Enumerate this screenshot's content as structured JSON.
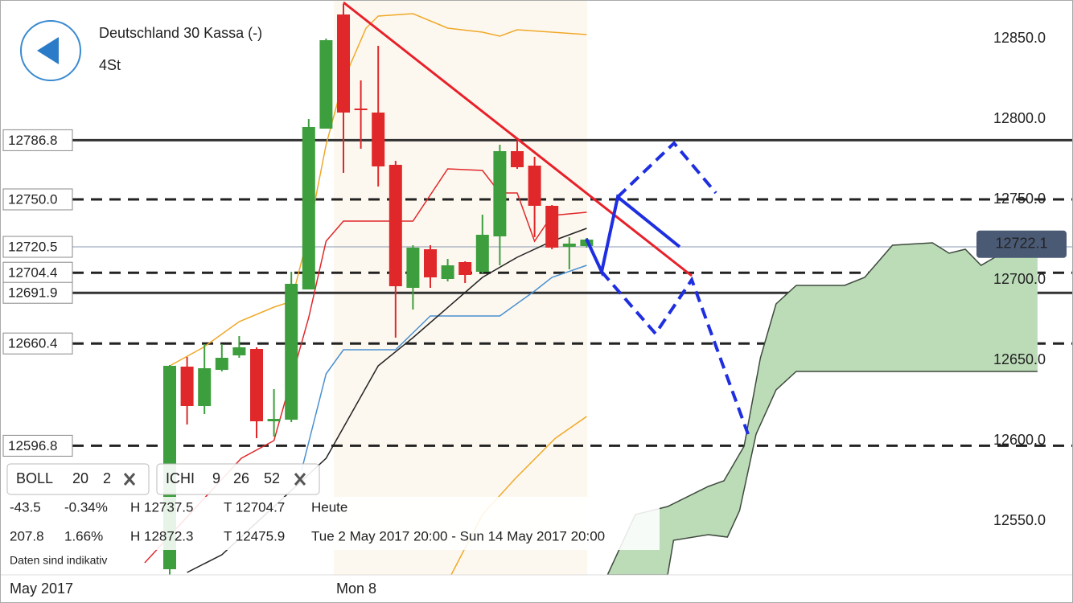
{
  "header": {
    "title": "Deutschland 30 Kassa (-)",
    "timeframe": "4St"
  },
  "chart_data": {
    "type": "candlestick",
    "categories": [
      null,
      null,
      null,
      null,
      null,
      null,
      null,
      null,
      null,
      null,
      "Mon 8",
      null,
      null,
      null,
      null,
      null,
      null,
      null,
      null,
      null,
      null,
      null,
      null,
      null,
      null
    ],
    "period_label": "May 2017",
    "open": [
      12520,
      12646,
      12621.5,
      12644,
      12653,
      12657,
      12612,
      12613,
      12694,
      12794,
      12865,
      12806.5,
      12804,
      12771.5,
      12695,
      12719,
      12700.5,
      12711,
      12705,
      12727,
      12780,
      12771,
      12746,
      12720.5,
      12721
    ],
    "high": [
      12647,
      12652,
      12660,
      12660,
      12665,
      12658,
      12632,
      12705,
      12800,
      12850,
      12871.5,
      12824,
      12845.5,
      12774,
      12721.5,
      12721.5,
      12713,
      12711.5,
      12740.5,
      12784,
      12786.5,
      12776.5,
      12746.5,
      12726.5,
      12726
    ],
    "low": [
      12500,
      12610,
      12616.5,
      12643,
      12651.5,
      12601.5,
      12602.5,
      12611.5,
      12694,
      12794,
      12766.5,
      12781.5,
      12758,
      12664,
      12681.5,
      12695,
      12699,
      12698,
      12704,
      12709,
      12769,
      12726.5,
      12719,
      12706.5,
      12720
    ],
    "close": [
      12646.5,
      12621.5,
      12645,
      12651.5,
      12658,
      12612,
      12613.5,
      12697.5,
      12795,
      12849,
      12804,
      12805.5,
      12770.5,
      12696,
      12720,
      12701.5,
      12709,
      12703,
      12728,
      12780,
      12770,
      12746,
      12720,
      12722.5,
      12725
    ],
    "up_color": "#3d9e3d",
    "down_color": "#e0282a",
    "ylim": [
      12516.5,
      12874
    ],
    "yticks": [
      {
        "value": 12550,
        "label": "12550.0"
      },
      {
        "value": 12600,
        "label": "12600.0"
      },
      {
        "value": 12650,
        "label": "12650.0"
      },
      {
        "value": 12700,
        "label": "12700.0"
      },
      {
        "value": 12750,
        "label": "12750.0"
      },
      {
        "value": 12800,
        "label": "12800.0"
      },
      {
        "value": 12850,
        "label": "12850.0"
      }
    ],
    "overlays": [
      {
        "color": "#f0a828",
        "x": [
          0,
          1.94,
          4,
          6,
          7,
          8,
          9,
          10,
          11.3,
          12,
          14,
          16,
          18,
          19,
          20,
          24
        ],
        "values": [
          12646.5,
          12658,
          12674,
          12683,
          12686.5,
          12729,
          12784,
          12824,
          12856.5,
          12864,
          12865.5,
          12856.5,
          12854,
          12851.5,
          12855.5,
          12852.5
        ]
      },
      {
        "color": "#f0a828",
        "x": [
          16.2,
          18,
          19.9,
          22.2,
          24
        ],
        "values": [
          12516.5,
          12554,
          12576.5,
          12601.5,
          12615
        ]
      },
      {
        "color": "#e0282a",
        "x": [
          -1.44,
          4.12,
          6,
          8,
          9,
          10,
          14,
          16,
          18,
          19,
          20,
          21,
          22,
          24
        ],
        "values": [
          12524,
          12589,
          12600,
          12676.5,
          12724,
          12736.5,
          12736.5,
          12769,
          12768,
          12754,
          12754,
          12724,
          12740,
          12742
        ]
      },
      {
        "color": "#4a90d0",
        "x": [
          7.59,
          9,
          10,
          13,
          15,
          19,
          21,
          22,
          24
        ],
        "values": [
          12581.5,
          12641.5,
          12656.5,
          12656.5,
          12677.5,
          12677.5,
          12693,
          12701.5,
          12709
        ]
      },
      {
        "color": "#222222",
        "x": [
          1,
          3,
          9,
          12,
          14,
          18,
          20,
          22,
          24
        ],
        "values": [
          12518,
          12529,
          12589,
          12646.5,
          12664,
          12701.5,
          12714,
          12724,
          12732
        ]
      }
    ],
    "cloud": {
      "color": "#bcdcb8",
      "edge_color": "#3e4a3e",
      "upper": {
        "x": [
          25.2,
          26.8,
          28.66,
          31,
          31.9,
          33.06,
          34,
          34.9,
          36.06,
          38.84,
          40,
          41.6,
          43.9,
          44.86,
          45.79,
          46.7,
          47.9,
          49.95
        ],
        "values": [
          12516.5,
          12554,
          12559,
          12571.5,
          12575,
          12596.5,
          12651.5,
          12685,
          12696.5,
          12696.5,
          12701.5,
          12721.5,
          12723,
          12716.5,
          12719,
          12709,
          12716.5,
          12724
        ]
      },
      "lower": {
        "x": [
          25.2,
          28.66,
          29,
          31,
          32.1,
          32.8,
          33.75,
          34.9,
          36.06,
          49.95
        ],
        "values": [
          12516.5,
          12516.5,
          12538,
          12541.5,
          12540,
          12556.5,
          12604,
          12631.5,
          12643,
          12643
        ]
      }
    },
    "levels": [
      {
        "value": 12786.8,
        "style": "solid"
      },
      {
        "value": 12750,
        "label": "12750.0",
        "style": "dashed"
      },
      {
        "value": 12720.5,
        "style": "thin"
      },
      {
        "value": 12704.4,
        "style": "dashed"
      },
      {
        "value": 12691.9,
        "style": "solid"
      },
      {
        "value": 12660.4,
        "style": "dashed"
      },
      {
        "value": 12596.8,
        "style": "dashed"
      }
    ],
    "last_price": 12722.1
  },
  "indicators": [
    {
      "name": "BOLL",
      "params": [
        20,
        2
      ]
    },
    {
      "name": "ICHI",
      "params": [
        9,
        26,
        52
      ]
    }
  ],
  "stats": [
    {
      "change": "-43.5",
      "change_pct": "-0.34%",
      "high": "H 12737.5",
      "low": "T 12704.7",
      "period": "Heute"
    },
    {
      "change": "207.8",
      "change_pct": "1.66%",
      "high": "H 12872.3",
      "low": "T 12475.9",
      "period": "Tue 2 May 2017 20:00 - Sun 14 May 2017 20:00"
    }
  ],
  "disclaimer": "Daten sind indikativ"
}
